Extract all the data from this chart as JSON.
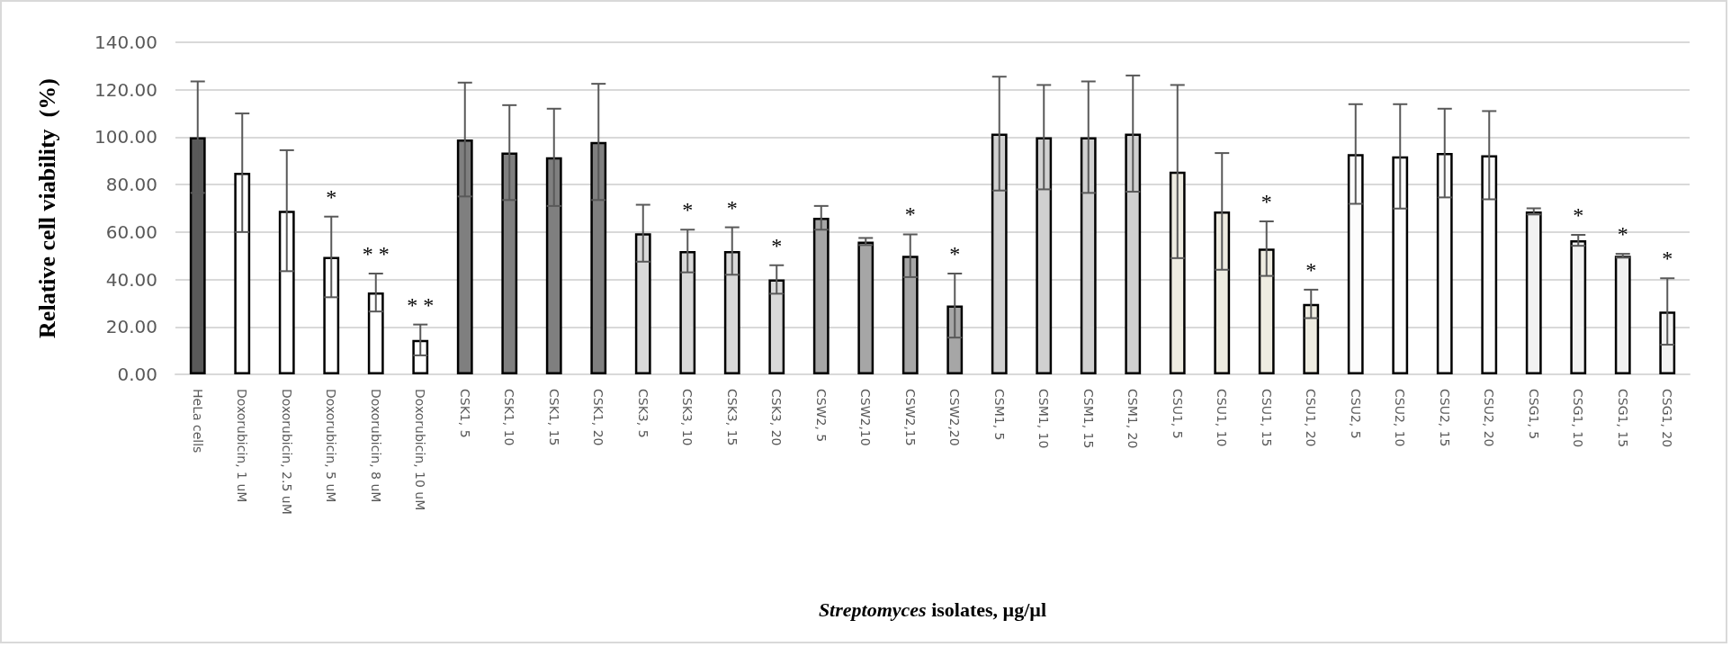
{
  "chart_data": {
    "type": "bar",
    "ylabel": "Relative cell viability  (%)",
    "xlabel": "Streptomyces isolates, µg/µl",
    "categories": [
      "HeLa cells",
      "Doxorubicin, 1 uM",
      "Doxorubicin, 2.5 uM",
      "Doxorubicin, 5 uM",
      "Doxorubicin, 8 uM",
      "Doxorubicin, 10 uM",
      "CSK1, 5",
      "CSK1, 10",
      "CSK1, 15",
      "CSK1, 20",
      "CSK3, 5",
      "CSK3, 10",
      "CSK3, 15",
      "CSK3, 20",
      "CSW2, 5",
      "CSW2,10",
      "CSW2,15",
      "CSW2,20",
      "CSM1, 5",
      "CSM1, 10",
      "CSM1, 15",
      "CSM1, 20",
      "CSU1, 5",
      "CSU1, 10",
      "CSU1, 15",
      "CSU1, 20",
      "CSU2, 5",
      "CSU2, 10",
      "CSU2, 15",
      "CSU2, 20",
      "CSG1, 5",
      "CSG1, 10",
      "CSG1, 15",
      "CSG1, 20"
    ],
    "values": [
      100,
      85,
      69,
      49.5,
      34.5,
      14.5,
      99,
      93.5,
      91.5,
      98,
      59.5,
      52,
      52,
      40,
      66,
      56,
      50,
      29,
      101.5,
      100,
      100,
      101.5,
      85.5,
      68.7,
      53,
      29.7,
      92.9,
      91.9,
      93.3,
      92.4,
      68.7,
      56.5,
      50,
      26.5
    ],
    "errors": [
      23.5,
      25,
      25.5,
      17,
      8,
      6.5,
      24,
      20,
      20.5,
      24.5,
      12,
      9,
      10,
      6,
      5,
      1.5,
      9,
      13.5,
      24,
      22,
      23.5,
      24.5,
      36.5,
      24.6,
      11.5,
      6,
      21,
      22,
      18.7,
      18.6,
      1.3,
      2.3,
      0.8,
      14
    ],
    "colors": [
      "#595959",
      "#ffffff",
      "#ffffff",
      "#ffffff",
      "#ffffff",
      "#ffffff",
      "#7f7f7f",
      "#7f7f7f",
      "#7f7f7f",
      "#7f7f7f",
      "#d9d9d9",
      "#d9d9d9",
      "#d9d9d9",
      "#d9d9d9",
      "#a6a6a6",
      "#a6a6a6",
      "#a6a6a6",
      "#a6a6a6",
      "#d0d0d0",
      "#d0d0d0",
      "#d0d0d0",
      "#d0d0d0",
      "#eeece1",
      "#eeece1",
      "#eeece1",
      "#eeece1",
      "#fcfcfc",
      "#fcfcfc",
      "#fcfcfc",
      "#fcfcfc",
      "#f2f2f2",
      "#f2f2f2",
      "#f2f2f2",
      "#f2f2f2"
    ],
    "ylim": [
      0,
      140
    ],
    "yticks": [
      {
        "value": 0,
        "label": "0.00"
      },
      {
        "value": 20,
        "label": "20.00"
      },
      {
        "value": 40,
        "label": "40.00"
      },
      {
        "value": 60,
        "label": "60.00"
      },
      {
        "value": 80,
        "label": "80.00"
      },
      {
        "value": 100,
        "label": "100.00"
      },
      {
        "value": 120,
        "label": "120.00"
      },
      {
        "value": 140,
        "label": "140.00"
      }
    ],
    "grid": "y",
    "annotations": [
      {
        "text": "*",
        "x": "Doxorubicin, 5 uM",
        "y": 49.5
      },
      {
        "text": "* *",
        "x": "Doxorubicin, 8 uM",
        "y": 34.5
      },
      {
        "text": "* *",
        "x": "Doxorubicin, 10 uM",
        "y": 14.5
      },
      {
        "text": "*",
        "x": "CSK3, 10",
        "y": 52
      },
      {
        "text": "*",
        "x": "CSK3, 15",
        "y": 52
      },
      {
        "text": "*",
        "x": "CSK3, 20",
        "y": 40
      },
      {
        "text": "*",
        "x": "CSW2,15",
        "y": 50
      },
      {
        "text": "*",
        "x": "CSW2,20",
        "y": 29
      },
      {
        "text": "*",
        "x": "CSU1, 15",
        "y": 53
      },
      {
        "text": "*",
        "x": "CSU1, 20",
        "y": 29.7
      },
      {
        "text": "*",
        "x": "CSG1, 10",
        "y": 56.5
      },
      {
        "text": "*",
        "x": "CSG1, 15",
        "y": 50
      },
      {
        "text": "*",
        "x": "CSG1, 20",
        "y": 26.5
      }
    ]
  }
}
